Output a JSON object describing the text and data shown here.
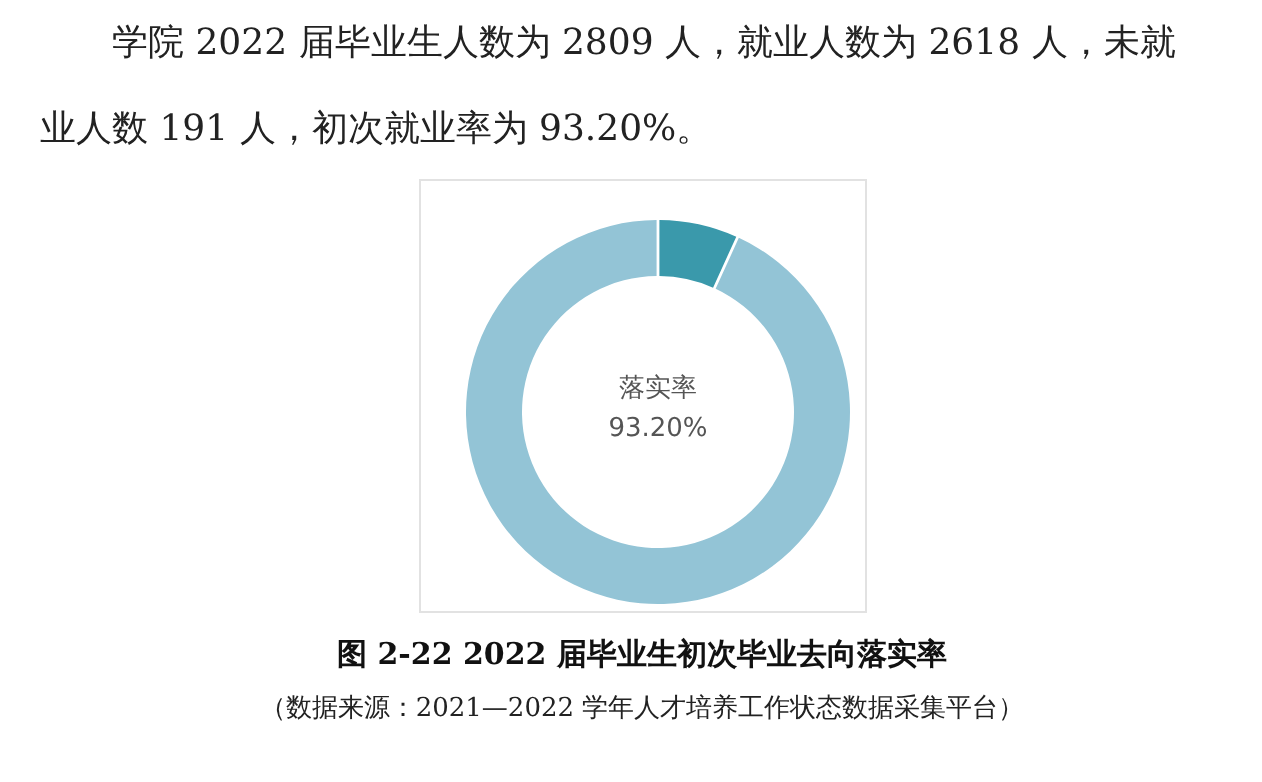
{
  "chart_data": {
    "type": "donut",
    "title": "图 2-22  2022 届毕业生初次毕业去向落实率",
    "subtitle": "学院 2022 届毕业生人数为 2809 人，就业人数为 2618 人，未就业人数 191 人，初次就业率为 93.20%。",
    "categories": [
      null,
      null
    ],
    "values": [
      6.8,
      93.2
    ],
    "colors": [
      "#3a99ab",
      "#93c4d6"
    ],
    "annotations": [
      "落实率",
      "93.20%",
      "（数据来源：2021—2022 学年人才培养工作状态数据采集平台）"
    ]
  }
}
